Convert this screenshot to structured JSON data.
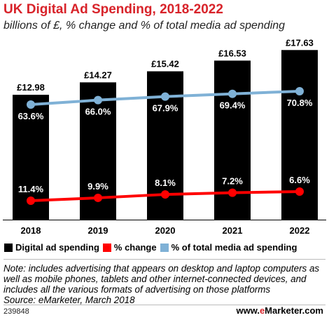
{
  "title": "UK Digital Ad Spending, 2018-2022",
  "subtitle": "billions of £, % change and % of total media ad spending",
  "legend": {
    "spending": "Digital ad spending",
    "change": "% change",
    "share": "% of total media ad spending"
  },
  "colors": {
    "bars": "#000000",
    "change": "#ff0000",
    "share": "#7fb1d6",
    "title": "#d8232a"
  },
  "note": "Note: includes advertising that appears on desktop and laptop computers as well as mobile phones, tablets and other internet-connected devices, and includes all the various formats of advertising on those platforms",
  "source": "Source: eMarketer, March 2018",
  "chart_id": "239848",
  "brand_prefix": "www.",
  "brand_e": "e",
  "brand_suffix": "Marketer.com",
  "chart_data": {
    "type": "bar",
    "categories": [
      "2018",
      "2019",
      "2020",
      "2021",
      "2022"
    ],
    "series": [
      {
        "name": "Digital ad spending",
        "type": "bar",
        "values": [
          12.98,
          14.27,
          15.42,
          16.53,
          17.63
        ],
        "labels": [
          "£12.98",
          "£14.27",
          "£15.42",
          "£16.53",
          "£17.63"
        ]
      },
      {
        "name": "% change",
        "type": "line",
        "values": [
          11.4,
          9.9,
          8.1,
          7.2,
          6.6
        ],
        "labels": [
          "11.4%",
          "9.9%",
          "8.1%",
          "7.2%",
          "6.6%"
        ]
      },
      {
        "name": "% of total media ad spending",
        "type": "line",
        "values": [
          63.6,
          66.0,
          67.9,
          69.4,
          70.8
        ],
        "labels": [
          "63.6%",
          "66.0%",
          "67.9%",
          "69.4%",
          "70.8%"
        ]
      }
    ],
    "ylim": [
      0,
      18.6
    ],
    "grid": false
  }
}
